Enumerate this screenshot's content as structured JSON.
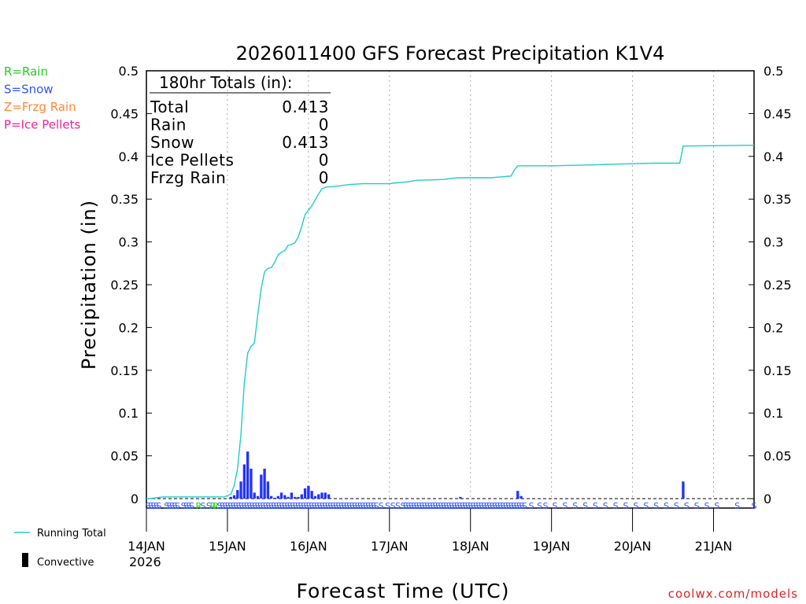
{
  "chart_data": {
    "type": "bar",
    "title": "2026011400 GFS Forecast Precipitation K1V4",
    "xlabel": "Forecast Time (UTC)",
    "ylabel": "Precipitation (in)",
    "ylim": [
      0,
      0.5
    ],
    "yticks": [
      "0",
      "0.05",
      "0.1",
      "0.15",
      "0.2",
      "0.25",
      "0.3",
      "0.35",
      "0.4",
      "0.45",
      "0.5"
    ],
    "xlim_hours": [
      0,
      180
    ],
    "xticks": [
      {
        "hour": 0,
        "label": "14JAN"
      },
      {
        "hour": 24,
        "label": "15JAN"
      },
      {
        "hour": 48,
        "label": "16JAN"
      },
      {
        "hour": 72,
        "label": "17JAN"
      },
      {
        "hour": 96,
        "label": "18JAN"
      },
      {
        "hour": 120,
        "label": "19JAN"
      },
      {
        "hour": 144,
        "label": "20JAN"
      },
      {
        "hour": 168,
        "label": "21JAN"
      }
    ],
    "year_label": "2026",
    "legend": [
      {
        "text": "R=Rain",
        "color": "#22cc22"
      },
      {
        "text": "S=Snow",
        "color": "#3355ff"
      },
      {
        "text": "Z=Frzg Rain",
        "color": "#ff8833"
      },
      {
        "text": "P=Ice Pellets",
        "color": "#ee2299"
      }
    ],
    "series_legend": {
      "running_total": "Running Total",
      "convective": "Convective"
    },
    "totals": {
      "header": "180hr Totals (in):",
      "rows": [
        {
          "label": "Total",
          "value": "0.413"
        },
        {
          "label": "Rain",
          "value": "0"
        },
        {
          "label": "Snow",
          "value": "0.413"
        },
        {
          "label": "Ice Pellets",
          "value": "0"
        },
        {
          "label": "Frzg Rain",
          "value": "0"
        }
      ]
    },
    "bars": [
      {
        "hour": 25,
        "value": 0.002
      },
      {
        "hour": 26,
        "value": 0.004
      },
      {
        "hour": 27,
        "value": 0.01
      },
      {
        "hour": 28,
        "value": 0.02
      },
      {
        "hour": 29,
        "value": 0.04
      },
      {
        "hour": 30,
        "value": 0.055
      },
      {
        "hour": 31,
        "value": 0.035
      },
      {
        "hour": 32,
        "value": 0.007
      },
      {
        "hour": 33,
        "value": 0.003
      },
      {
        "hour": 34,
        "value": 0.028
      },
      {
        "hour": 35,
        "value": 0.035
      },
      {
        "hour": 36,
        "value": 0.02
      },
      {
        "hour": 37,
        "value": 0.003
      },
      {
        "hour": 38,
        "value": 0.001
      },
      {
        "hour": 39,
        "value": 0.003
      },
      {
        "hour": 40,
        "value": 0.007
      },
      {
        "hour": 41,
        "value": 0.004
      },
      {
        "hour": 42,
        "value": 0.002
      },
      {
        "hour": 43,
        "value": 0.007
      },
      {
        "hour": 44,
        "value": 0.002
      },
      {
        "hour": 45,
        "value": 0.002
      },
      {
        "hour": 46,
        "value": 0.005
      },
      {
        "hour": 47,
        "value": 0.012
      },
      {
        "hour": 48,
        "value": 0.015
      },
      {
        "hour": 49,
        "value": 0.009
      },
      {
        "hour": 50,
        "value": 0.003
      },
      {
        "hour": 51,
        "value": 0.005
      },
      {
        "hour": 52,
        "value": 0.007
      },
      {
        "hour": 53,
        "value": 0.007
      },
      {
        "hour": 54,
        "value": 0.005
      },
      {
        "hour": 93,
        "value": 0.002
      },
      {
        "hour": 110,
        "value": 0.009
      },
      {
        "hour": 111,
        "value": 0.003
      },
      {
        "hour": 159,
        "value": 0.02
      }
    ],
    "running_total": [
      {
        "hour": 0,
        "value": 0.0
      },
      {
        "hour": 1,
        "value": 0.0
      },
      {
        "hour": 5,
        "value": 0.002
      },
      {
        "hour": 23,
        "value": 0.002
      },
      {
        "hour": 25,
        "value": 0.005
      },
      {
        "hour": 26,
        "value": 0.015
      },
      {
        "hour": 27,
        "value": 0.035
      },
      {
        "hour": 28,
        "value": 0.075
      },
      {
        "hour": 29,
        "value": 0.135
      },
      {
        "hour": 30,
        "value": 0.17
      },
      {
        "hour": 31,
        "value": 0.178
      },
      {
        "hour": 32,
        "value": 0.182
      },
      {
        "hour": 33,
        "value": 0.215
      },
      {
        "hour": 34,
        "value": 0.245
      },
      {
        "hour": 35,
        "value": 0.265
      },
      {
        "hour": 36,
        "value": 0.269
      },
      {
        "hour": 37,
        "value": 0.27
      },
      {
        "hour": 38,
        "value": 0.276
      },
      {
        "hour": 39,
        "value": 0.285
      },
      {
        "hour": 40,
        "value": 0.288
      },
      {
        "hour": 41,
        "value": 0.29
      },
      {
        "hour": 42,
        "value": 0.296
      },
      {
        "hour": 43,
        "value": 0.297
      },
      {
        "hour": 44,
        "value": 0.299
      },
      {
        "hour": 45,
        "value": 0.306
      },
      {
        "hour": 46,
        "value": 0.318
      },
      {
        "hour": 47,
        "value": 0.332
      },
      {
        "hour": 48,
        "value": 0.337
      },
      {
        "hour": 49,
        "value": 0.342
      },
      {
        "hour": 50,
        "value": 0.349
      },
      {
        "hour": 51,
        "value": 0.356
      },
      {
        "hour": 52,
        "value": 0.362
      },
      {
        "hour": 53,
        "value": 0.364
      },
      {
        "hour": 56,
        "value": 0.365
      },
      {
        "hour": 60,
        "value": 0.367
      },
      {
        "hour": 64,
        "value": 0.368
      },
      {
        "hour": 72,
        "value": 0.368
      },
      {
        "hour": 74,
        "value": 0.369
      },
      {
        "hour": 77,
        "value": 0.37
      },
      {
        "hour": 80,
        "value": 0.372
      },
      {
        "hour": 88,
        "value": 0.373
      },
      {
        "hour": 92,
        "value": 0.375
      },
      {
        "hour": 102,
        "value": 0.375
      },
      {
        "hour": 108,
        "value": 0.377
      },
      {
        "hour": 109,
        "value": 0.384
      },
      {
        "hour": 110,
        "value": 0.389
      },
      {
        "hour": 112,
        "value": 0.389
      },
      {
        "hour": 120,
        "value": 0.389
      },
      {
        "hour": 132,
        "value": 0.39
      },
      {
        "hour": 140,
        "value": 0.391
      },
      {
        "hour": 150,
        "value": 0.392
      },
      {
        "hour": 158,
        "value": 0.392
      },
      {
        "hour": 158.5,
        "value": 0.402
      },
      {
        "hour": 159,
        "value": 0.412
      },
      {
        "hour": 180,
        "value": 0.413
      }
    ],
    "ptype_markers": [
      {
        "hour": 0.5,
        "type": "S"
      },
      {
        "hour": 1.3,
        "type": "S"
      },
      {
        "hour": 2.1,
        "type": "S"
      },
      {
        "hour": 2.9,
        "type": "S"
      },
      {
        "hour": 3.7,
        "type": "S"
      },
      {
        "hour": 6.0,
        "type": "S"
      },
      {
        "hour": 6.8,
        "type": "S"
      },
      {
        "hour": 7.6,
        "type": "S"
      },
      {
        "hour": 8.4,
        "type": "S"
      },
      {
        "hour": 9.2,
        "type": "S"
      },
      {
        "hour": 11.0,
        "type": "S"
      },
      {
        "hour": 11.8,
        "type": "S"
      },
      {
        "hour": 12.6,
        "type": "S"
      },
      {
        "hour": 13.4,
        "type": "S"
      },
      {
        "hour": 15.5,
        "type": "R"
      },
      {
        "hour": 16.8,
        "type": "S"
      },
      {
        "hour": 18.5,
        "type": "S"
      },
      {
        "hour": 19.7,
        "type": "R"
      },
      {
        "hour": 20.5,
        "type": "R"
      },
      {
        "hour": 21.7,
        "type": "S"
      },
      {
        "hour": 22.5,
        "type": "S"
      },
      {
        "hour": 23.3,
        "type": "S"
      },
      {
        "hour": 24.1,
        "type": "S"
      },
      {
        "hour": 24.9,
        "type": "S"
      },
      {
        "hour": 25.7,
        "type": "S"
      },
      {
        "hour": 26.5,
        "type": "S"
      },
      {
        "hour": 27.3,
        "type": "S"
      },
      {
        "hour": 28.1,
        "type": "S"
      },
      {
        "hour": 28.9,
        "type": "S"
      },
      {
        "hour": 29.7,
        "type": "S"
      },
      {
        "hour": 30.5,
        "type": "S"
      },
      {
        "hour": 31.3,
        "type": "S"
      },
      {
        "hour": 32.1,
        "type": "S"
      },
      {
        "hour": 32.9,
        "type": "S"
      },
      {
        "hour": 33.7,
        "type": "S"
      },
      {
        "hour": 34.5,
        "type": "S"
      },
      {
        "hour": 35.3,
        "type": "S"
      },
      {
        "hour": 36.1,
        "type": "S"
      },
      {
        "hour": 36.9,
        "type": "S"
      },
      {
        "hour": 37.7,
        "type": "S"
      },
      {
        "hour": 38.5,
        "type": "S"
      },
      {
        "hour": 39.3,
        "type": "S"
      },
      {
        "hour": 40.1,
        "type": "S"
      },
      {
        "hour": 40.9,
        "type": "S"
      },
      {
        "hour": 41.7,
        "type": "S"
      },
      {
        "hour": 42.5,
        "type": "S"
      },
      {
        "hour": 43.3,
        "type": "S"
      },
      {
        "hour": 44.1,
        "type": "S"
      },
      {
        "hour": 44.9,
        "type": "S"
      },
      {
        "hour": 45.7,
        "type": "S"
      },
      {
        "hour": 46.5,
        "type": "S"
      },
      {
        "hour": 47.3,
        "type": "S"
      },
      {
        "hour": 48.1,
        "type": "S"
      },
      {
        "hour": 48.9,
        "type": "S"
      },
      {
        "hour": 49.7,
        "type": "S"
      },
      {
        "hour": 50.5,
        "type": "S"
      },
      {
        "hour": 51.3,
        "type": "S"
      },
      {
        "hour": 52.1,
        "type": "S"
      },
      {
        "hour": 52.9,
        "type": "S"
      },
      {
        "hour": 53.7,
        "type": "S"
      },
      {
        "hour": 54.5,
        "type": "S"
      },
      {
        "hour": 55.3,
        "type": "S"
      },
      {
        "hour": 56.1,
        "type": "S"
      },
      {
        "hour": 56.9,
        "type": "S"
      },
      {
        "hour": 57.7,
        "type": "S"
      },
      {
        "hour": 58.5,
        "type": "S"
      },
      {
        "hour": 59.3,
        "type": "S"
      },
      {
        "hour": 60.1,
        "type": "S"
      },
      {
        "hour": 60.9,
        "type": "S"
      },
      {
        "hour": 61.7,
        "type": "S"
      },
      {
        "hour": 62.5,
        "type": "S"
      },
      {
        "hour": 63.3,
        "type": "S"
      },
      {
        "hour": 64.1,
        "type": "S"
      },
      {
        "hour": 64.9,
        "type": "S"
      },
      {
        "hour": 65.7,
        "type": "S"
      },
      {
        "hour": 66.5,
        "type": "S"
      },
      {
        "hour": 67.3,
        "type": "S"
      },
      {
        "hour": 68.1,
        "type": "S"
      },
      {
        "hour": 69.5,
        "type": "S"
      },
      {
        "hour": 71.5,
        "type": "S"
      },
      {
        "hour": 73.0,
        "type": "S"
      },
      {
        "hour": 74.5,
        "type": "S"
      },
      {
        "hour": 76.0,
        "type": "S"
      },
      {
        "hour": 76.8,
        "type": "S"
      },
      {
        "hour": 77.6,
        "type": "S"
      },
      {
        "hour": 78.4,
        "type": "S"
      },
      {
        "hour": 79.2,
        "type": "S"
      },
      {
        "hour": 80.0,
        "type": "S"
      },
      {
        "hour": 80.8,
        "type": "S"
      },
      {
        "hour": 81.6,
        "type": "S"
      },
      {
        "hour": 82.4,
        "type": "S"
      },
      {
        "hour": 83.2,
        "type": "S"
      },
      {
        "hour": 84.0,
        "type": "S"
      },
      {
        "hour": 84.8,
        "type": "S"
      },
      {
        "hour": 85.6,
        "type": "S"
      },
      {
        "hour": 86.4,
        "type": "S"
      },
      {
        "hour": 87.2,
        "type": "S"
      },
      {
        "hour": 88.0,
        "type": "S"
      },
      {
        "hour": 88.8,
        "type": "S"
      },
      {
        "hour": 89.6,
        "type": "S"
      },
      {
        "hour": 90.4,
        "type": "S"
      },
      {
        "hour": 91.2,
        "type": "S"
      },
      {
        "hour": 92.0,
        "type": "S"
      },
      {
        "hour": 92.8,
        "type": "S"
      },
      {
        "hour": 93.6,
        "type": "S"
      },
      {
        "hour": 94.4,
        "type": "S"
      },
      {
        "hour": 95.2,
        "type": "S"
      },
      {
        "hour": 96.0,
        "type": "S"
      },
      {
        "hour": 96.8,
        "type": "S"
      },
      {
        "hour": 97.6,
        "type": "S"
      },
      {
        "hour": 98.4,
        "type": "S"
      },
      {
        "hour": 99.2,
        "type": "S"
      },
      {
        "hour": 100.0,
        "type": "S"
      },
      {
        "hour": 100.8,
        "type": "S"
      },
      {
        "hour": 101.6,
        "type": "S"
      },
      {
        "hour": 102.4,
        "type": "S"
      },
      {
        "hour": 103.2,
        "type": "S"
      },
      {
        "hour": 104.0,
        "type": "S"
      },
      {
        "hour": 104.8,
        "type": "S"
      },
      {
        "hour": 105.6,
        "type": "S"
      },
      {
        "hour": 106.4,
        "type": "S"
      },
      {
        "hour": 107.2,
        "type": "S"
      },
      {
        "hour": 108.0,
        "type": "S"
      },
      {
        "hour": 108.8,
        "type": "S"
      },
      {
        "hour": 109.6,
        "type": "S"
      },
      {
        "hour": 110.4,
        "type": "S"
      },
      {
        "hour": 111.2,
        "type": "S"
      },
      {
        "hour": 112.0,
        "type": "S"
      },
      {
        "hour": 114.0,
        "type": "S"
      },
      {
        "hour": 116.5,
        "type": "S"
      },
      {
        "hour": 118.2,
        "type": "S"
      },
      {
        "hour": 121.0,
        "type": "S"
      },
      {
        "hour": 124.0,
        "type": "S"
      },
      {
        "hour": 127.0,
        "type": "S"
      },
      {
        "hour": 130.0,
        "type": "S"
      },
      {
        "hour": 133.0,
        "type": "S"
      },
      {
        "hour": 136.0,
        "type": "S"
      },
      {
        "hour": 139.0,
        "type": "S"
      },
      {
        "hour": 142.0,
        "type": "S"
      },
      {
        "hour": 145.0,
        "type": "S"
      },
      {
        "hour": 148.0,
        "type": "S"
      },
      {
        "hour": 151.0,
        "type": "S"
      },
      {
        "hour": 154.0,
        "type": "S"
      },
      {
        "hour": 157.0,
        "type": "S"
      },
      {
        "hour": 160.0,
        "type": "S"
      },
      {
        "hour": 163.0,
        "type": "S"
      },
      {
        "hour": 166.0,
        "type": "S"
      },
      {
        "hour": 169.0,
        "type": "S"
      },
      {
        "hour": 175.0,
        "type": "S"
      },
      {
        "hour": 180.0,
        "type": "S"
      }
    ],
    "colors": {
      "bar": "#2233ff",
      "line": "#22cccc",
      "grid": "#aaaaaa",
      "snow": "#3355ff",
      "rain": "#22cc22",
      "credit": "#dd2222"
    },
    "credit": "coolwx.com/models"
  }
}
